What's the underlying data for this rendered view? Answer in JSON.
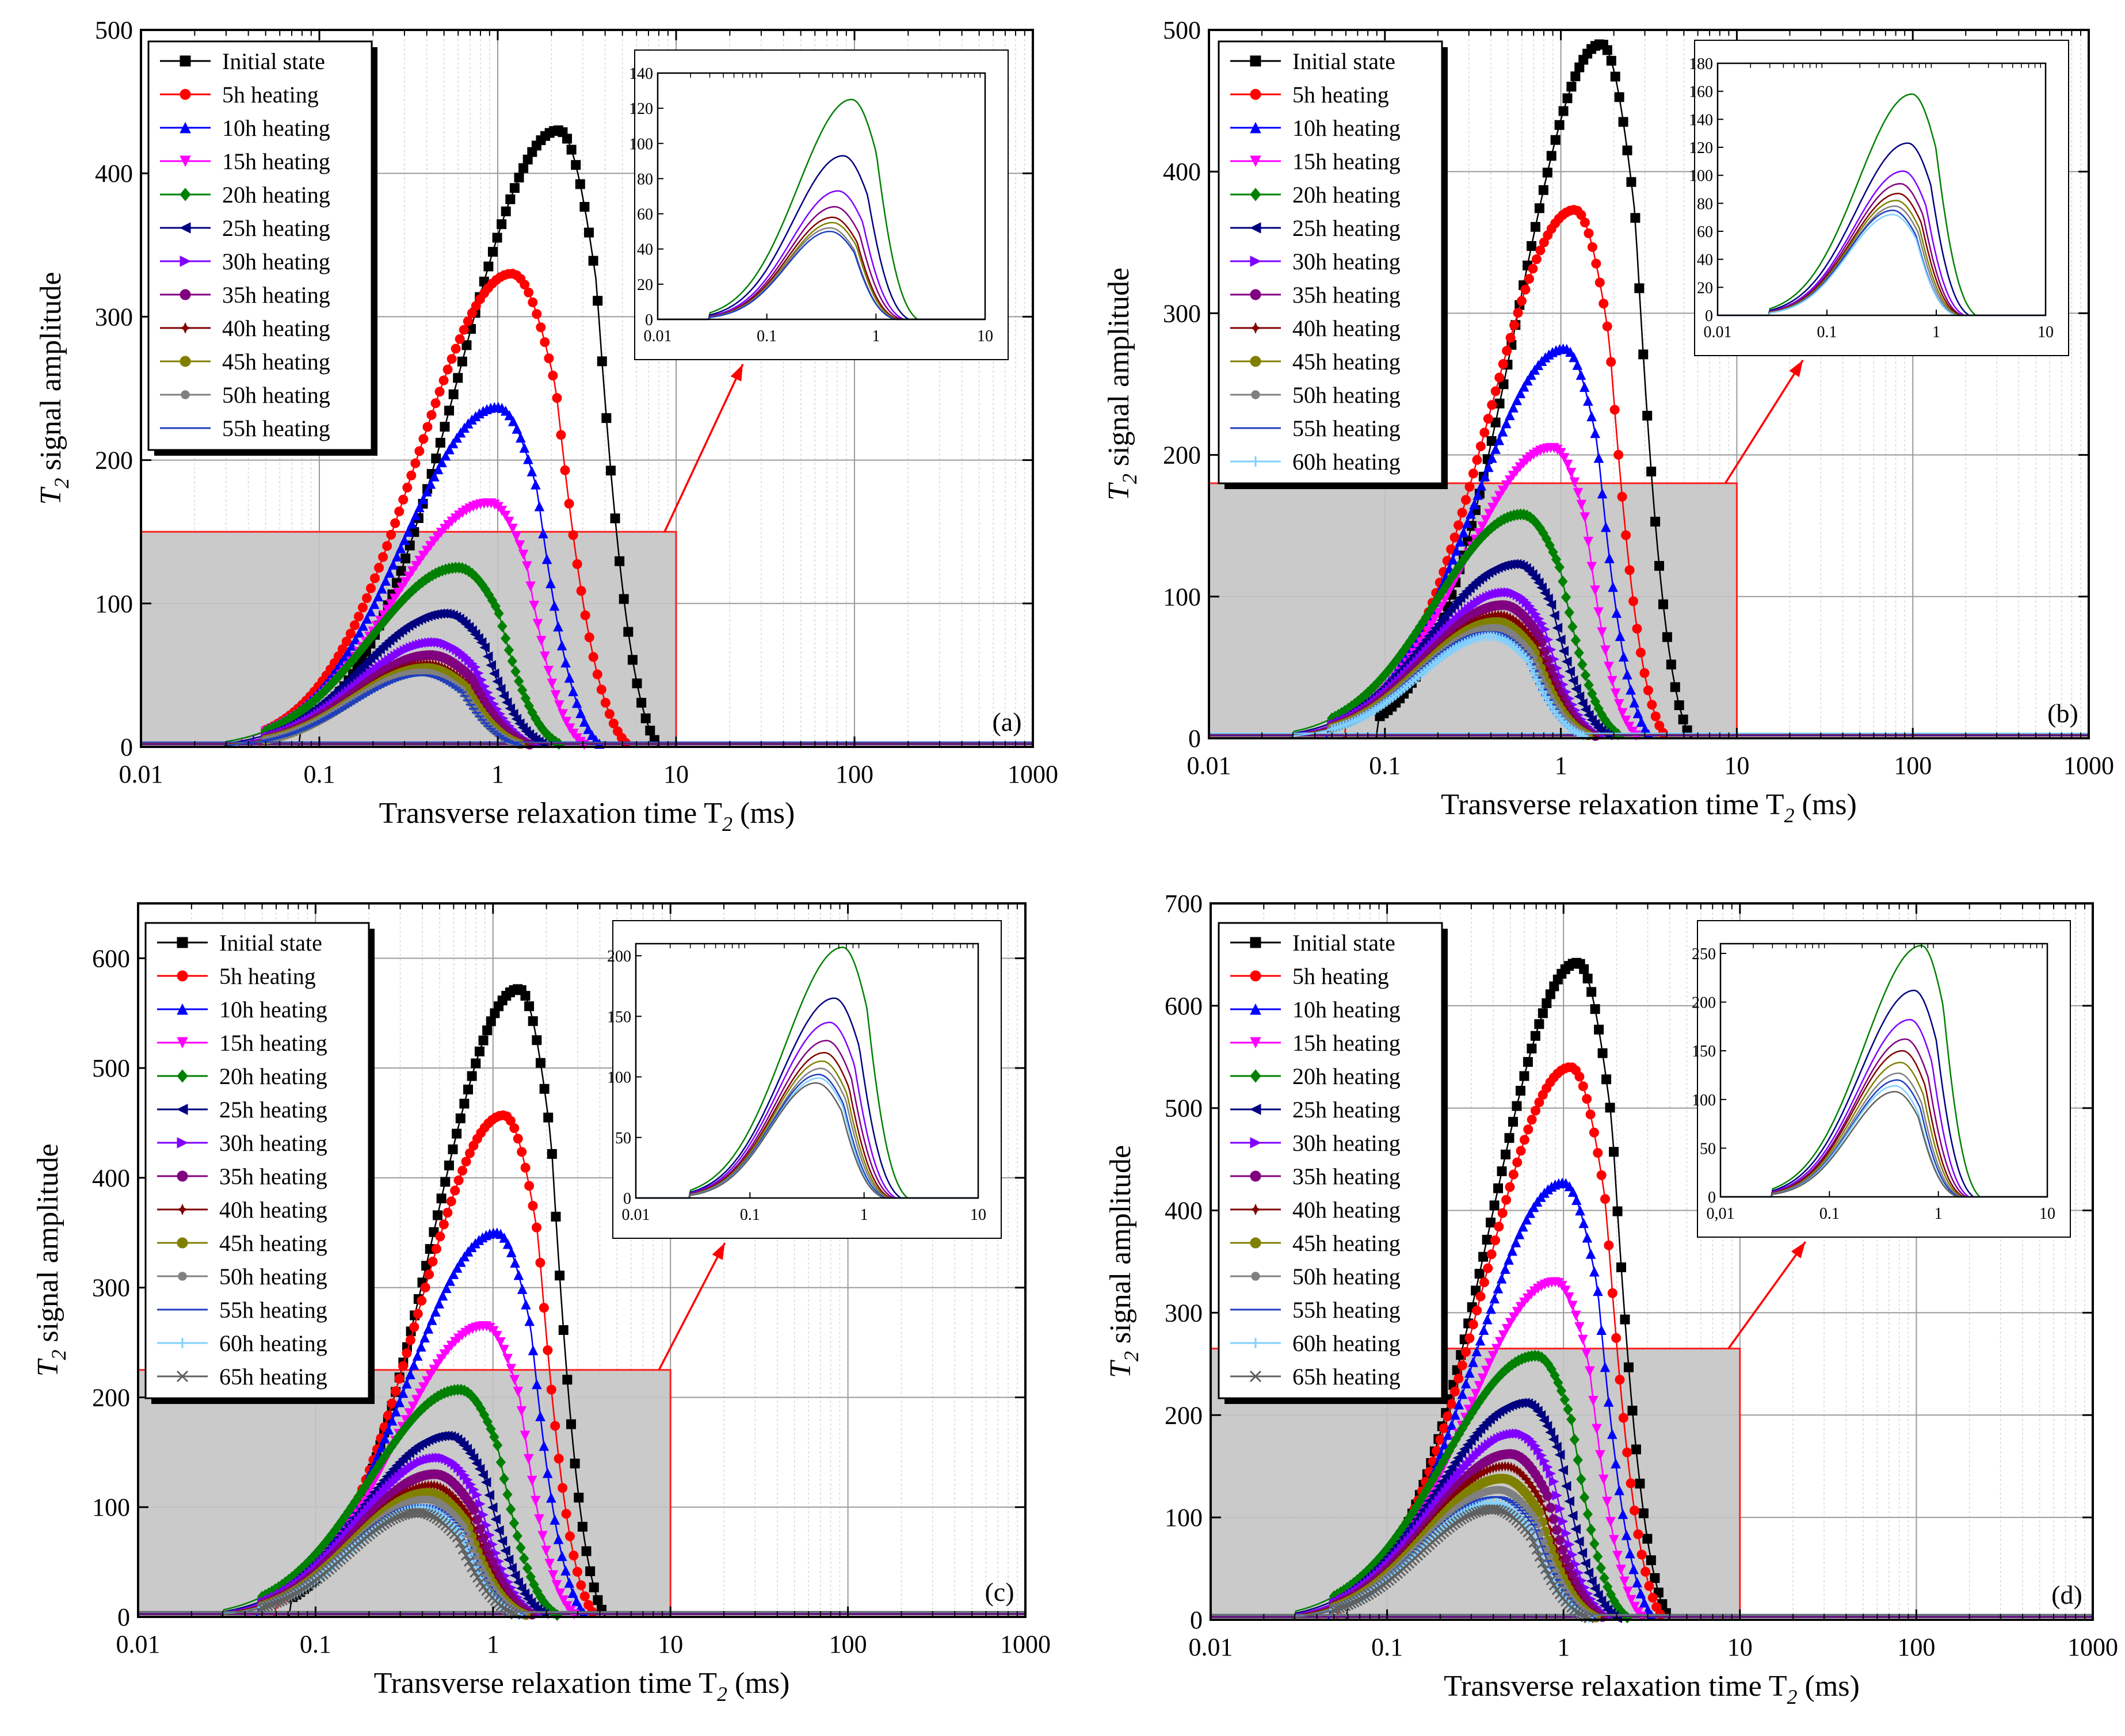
{
  "figure": {
    "description_free": true
  },
  "chart_data": [
    {
      "type": "line",
      "panel_label": "(a)",
      "xscale": "log",
      "xlim": [
        0.01,
        1000
      ],
      "ylim": [
        0,
        500
      ],
      "xticks": [
        "0.01",
        "0.1",
        "1",
        "10",
        "100",
        "1000"
      ],
      "yticks": [
        "0",
        "100",
        "200",
        "300",
        "400",
        "500"
      ],
      "xlabel": "Transverse relaxation time T2 (ms)",
      "xlabel_parts": {
        "main": "Transverse relaxation time T",
        "sub": "2",
        "unit": " (ms)"
      },
      "ylabel": "T2 signal amplitude",
      "ylabel_parts": {
        "sym": "T",
        "sub": "2",
        "rest": " signal amplitude"
      },
      "highlight_region": {
        "x": [
          0.01,
          10
        ],
        "y": [
          0,
          150
        ]
      },
      "inset": {
        "xlim": [
          0.01,
          10
        ],
        "ylim": [
          0,
          140
        ],
        "xticks": [
          "0.01",
          "0.1",
          "1",
          "10"
        ],
        "yticks": [
          "0",
          "20",
          "40",
          "60",
          "80",
          "100",
          "120",
          "140"
        ]
      },
      "series": [
        {
          "name": "Initial state",
          "peak_x": 2.2,
          "peak_y": 430,
          "left": 0.13,
          "right": 8.0,
          "marker": "square",
          "color": "#000000"
        },
        {
          "name": "5h heating",
          "peak_x": 1.2,
          "peak_y": 330,
          "left": 0.08,
          "right": 5.5,
          "marker": "circle",
          "color": "#ff0000"
        },
        {
          "name": "10h heating",
          "peak_x": 1.0,
          "peak_y": 237,
          "left": 0.07,
          "right": 3.9,
          "marker": "triangle-up",
          "color": "#0000ff"
        },
        {
          "name": "15h heating",
          "peak_x": 0.9,
          "peak_y": 170,
          "left": 0.06,
          "right": 3.2,
          "marker": "triangle-down",
          "color": "#ff00ff"
        },
        {
          "name": "20h heating",
          "peak_x": 0.6,
          "peak_y": 125,
          "left": 0.05,
          "right": 2.4,
          "marker": "diamond",
          "color": "#008000"
        },
        {
          "name": "25h heating",
          "peak_x": 0.5,
          "peak_y": 93,
          "left": 0.05,
          "right": 2.0,
          "marker": "triangle-left",
          "color": "#000080"
        },
        {
          "name": "30h heating",
          "peak_x": 0.45,
          "peak_y": 73,
          "left": 0.05,
          "right": 1.8,
          "marker": "triangle-right",
          "color": "#8000ff"
        },
        {
          "name": "35h heating",
          "peak_x": 0.42,
          "peak_y": 64,
          "left": 0.05,
          "right": 1.7,
          "marker": "hexagon",
          "color": "#800080"
        },
        {
          "name": "40h heating",
          "peak_x": 0.4,
          "peak_y": 58,
          "left": 0.05,
          "right": 1.6,
          "marker": "star",
          "color": "#800000"
        },
        {
          "name": "45h heating",
          "peak_x": 0.4,
          "peak_y": 55,
          "left": 0.05,
          "right": 1.55,
          "marker": "pentagon",
          "color": "#808000"
        },
        {
          "name": "50h heating",
          "peak_x": 0.38,
          "peak_y": 52,
          "left": 0.05,
          "right": 1.5,
          "marker": "circle-small",
          "color": "#808080"
        },
        {
          "name": "55h heating",
          "peak_x": 0.38,
          "peak_y": 50,
          "left": 0.05,
          "right": 1.5,
          "marker": "dash",
          "color": "#1f3fbf"
        }
      ]
    },
    {
      "type": "line",
      "panel_label": "(b)",
      "xscale": "log",
      "xlim": [
        0.01,
        1000
      ],
      "ylim": [
        0,
        500
      ],
      "xticks": [
        "0.01",
        "0.1",
        "1",
        "10",
        "100",
        "1000"
      ],
      "yticks": [
        "0",
        "100",
        "200",
        "300",
        "400",
        "500"
      ],
      "xlabel": "Transverse relaxation time T2 (ms)",
      "xlabel_parts": {
        "main": "Transverse relaxation time T",
        "sub": "2",
        "unit": " (ms)"
      },
      "ylabel": "T2 signal amplitude",
      "ylabel_parts": {
        "sym": "T",
        "sub": "2",
        "rest": " signal amplitude"
      },
      "highlight_region": {
        "x": [
          0.01,
          10
        ],
        "y": [
          0,
          180
        ]
      },
      "inset": {
        "xlim": [
          0.01,
          10
        ],
        "ylim": [
          0,
          180
        ],
        "xticks": [
          "0.01",
          "0.1",
          "1",
          "10"
        ],
        "yticks": [
          "0",
          "20",
          "40",
          "60",
          "80",
          "100",
          "120",
          "140",
          "160",
          "180"
        ]
      },
      "series": [
        {
          "name": "Initial state",
          "peak_x": 1.7,
          "peak_y": 490,
          "left": 0.15,
          "right": 5.5,
          "marker": "square",
          "color": "#000000"
        },
        {
          "name": "5h heating",
          "peak_x": 1.2,
          "peak_y": 373,
          "left": 0.1,
          "right": 4.0,
          "marker": "circle",
          "color": "#ff0000"
        },
        {
          "name": "10h heating",
          "peak_x": 1.05,
          "peak_y": 275,
          "left": 0.08,
          "right": 3.3,
          "marker": "triangle-up",
          "color": "#0000ff"
        },
        {
          "name": "15h heating",
          "peak_x": 0.9,
          "peak_y": 205,
          "left": 0.07,
          "right": 2.8,
          "marker": "triangle-down",
          "color": "#ff00ff"
        },
        {
          "name": "20h heating",
          "peak_x": 0.6,
          "peak_y": 158,
          "left": 0.05,
          "right": 2.3,
          "marker": "diamond",
          "color": "#008000"
        },
        {
          "name": "25h heating",
          "peak_x": 0.55,
          "peak_y": 123,
          "left": 0.05,
          "right": 2.0,
          "marker": "triangle-left",
          "color": "#000080"
        },
        {
          "name": "30h heating",
          "peak_x": 0.5,
          "peak_y": 103,
          "left": 0.05,
          "right": 1.8,
          "marker": "triangle-right",
          "color": "#8000ff"
        },
        {
          "name": "35h heating",
          "peak_x": 0.47,
          "peak_y": 94,
          "left": 0.05,
          "right": 1.7,
          "marker": "hexagon",
          "color": "#800080"
        },
        {
          "name": "40h heating",
          "peak_x": 0.45,
          "peak_y": 87,
          "left": 0.05,
          "right": 1.65,
          "marker": "star",
          "color": "#800000"
        },
        {
          "name": "45h heating",
          "peak_x": 0.43,
          "peak_y": 82,
          "left": 0.05,
          "right": 1.6,
          "marker": "pentagon",
          "color": "#808000"
        },
        {
          "name": "50h heating",
          "peak_x": 0.42,
          "peak_y": 78,
          "left": 0.05,
          "right": 1.55,
          "marker": "circle-small",
          "color": "#808080"
        },
        {
          "name": "55h heating",
          "peak_x": 0.4,
          "peak_y": 75,
          "left": 0.05,
          "right": 1.5,
          "marker": "dash",
          "color": "#1f3fbf"
        },
        {
          "name": "60h heating",
          "peak_x": 0.4,
          "peak_y": 72,
          "left": 0.05,
          "right": 1.5,
          "marker": "cross",
          "color": "#80d0ff"
        }
      ]
    },
    {
      "type": "line",
      "panel_label": "(c)",
      "xscale": "log",
      "xlim": [
        0.01,
        1000
      ],
      "ylim": [
        0,
        650
      ],
      "xticks": [
        "0.01",
        "0.1",
        "1",
        "10",
        "100",
        "1000"
      ],
      "yticks": [
        "0",
        "100",
        "200",
        "300",
        "400",
        "500",
        "600"
      ],
      "xlabel": "Transverse relaxation time T2 (ms)",
      "xlabel_parts": {
        "main": "Transverse relaxation time T",
        "sub": "2",
        "unit": " (ms)"
      },
      "ylabel": "T2 signal amplitude",
      "ylabel_parts": {
        "sym": "T",
        "sub": "2",
        "rest": " signal amplitude"
      },
      "highlight_region": {
        "x": [
          0.01,
          10
        ],
        "y": [
          0,
          225
        ]
      },
      "inset": {
        "xlim": [
          0.01,
          10
        ],
        "ylim": [
          0,
          210
        ],
        "xticks": [
          "0.01",
          "0.1",
          "1",
          "10"
        ],
        "yticks": [
          "0",
          "50",
          "100",
          "150",
          "200"
        ]
      },
      "series": [
        {
          "name": "Initial state",
          "peak_x": 1.4,
          "peak_y": 572,
          "left": 0.12,
          "right": 4.3,
          "marker": "square",
          "color": "#000000"
        },
        {
          "name": "5h heating",
          "peak_x": 1.15,
          "peak_y": 457,
          "left": 0.1,
          "right": 3.8,
          "marker": "circle",
          "color": "#ff0000"
        },
        {
          "name": "10h heating",
          "peak_x": 1.05,
          "peak_y": 350,
          "left": 0.08,
          "right": 3.4,
          "marker": "triangle-up",
          "color": "#0000ff"
        },
        {
          "name": "15h heating",
          "peak_x": 0.9,
          "peak_y": 265,
          "left": 0.07,
          "right": 3.0,
          "marker": "triangle-down",
          "color": "#ff00ff"
        },
        {
          "name": "20h heating",
          "peak_x": 0.65,
          "peak_y": 207,
          "left": 0.05,
          "right": 2.4,
          "marker": "diamond",
          "color": "#008000"
        },
        {
          "name": "25h heating",
          "peak_x": 0.55,
          "peak_y": 165,
          "left": 0.05,
          "right": 2.1,
          "marker": "triangle-left",
          "color": "#000080"
        },
        {
          "name": "30h heating",
          "peak_x": 0.5,
          "peak_y": 145,
          "left": 0.05,
          "right": 1.9,
          "marker": "triangle-right",
          "color": "#8000ff"
        },
        {
          "name": "35h heating",
          "peak_x": 0.47,
          "peak_y": 130,
          "left": 0.05,
          "right": 1.8,
          "marker": "hexagon",
          "color": "#800080"
        },
        {
          "name": "40h heating",
          "peak_x": 0.45,
          "peak_y": 120,
          "left": 0.05,
          "right": 1.7,
          "marker": "star",
          "color": "#800000"
        },
        {
          "name": "45h heating",
          "peak_x": 0.43,
          "peak_y": 113,
          "left": 0.05,
          "right": 1.65,
          "marker": "pentagon",
          "color": "#808000"
        },
        {
          "name": "50h heating",
          "peak_x": 0.42,
          "peak_y": 107,
          "left": 0.05,
          "right": 1.6,
          "marker": "circle-small",
          "color": "#808080"
        },
        {
          "name": "55h heating",
          "peak_x": 0.4,
          "peak_y": 102,
          "left": 0.05,
          "right": 1.55,
          "marker": "dash",
          "color": "#1f3fbf"
        },
        {
          "name": "60h heating",
          "peak_x": 0.4,
          "peak_y": 99,
          "left": 0.05,
          "right": 1.5,
          "marker": "cross",
          "color": "#80d0ff"
        },
        {
          "name": "65h heating",
          "peak_x": 0.38,
          "peak_y": 95,
          "left": 0.05,
          "right": 1.5,
          "marker": "x",
          "color": "#606060"
        }
      ]
    },
    {
      "type": "line",
      "panel_label": "(d)",
      "xscale": "log",
      "xlim": [
        0.01,
        1000
      ],
      "ylim": [
        0,
        700
      ],
      "xticks": [
        "0.01",
        "0.1",
        "1",
        "10",
        "100",
        "1000"
      ],
      "yticks": [
        "0",
        "100",
        "200",
        "300",
        "400",
        "500",
        "600",
        "700"
      ],
      "xlabel": "Transverse relaxation time T2 (ms)",
      "xlabel_parts": {
        "main": "Transverse relaxation time T",
        "sub": "2",
        "unit": " (ms)"
      },
      "ylabel": "T2 signal amplitude",
      "ylabel_parts": {
        "sym": "T",
        "sub": "2",
        "rest": " signal amplitude"
      },
      "highlight_region": {
        "x": [
          0.01,
          10
        ],
        "y": [
          0,
          265
        ]
      },
      "inset": {
        "xlim": [
          0.01,
          10
        ],
        "ylim": [
          0,
          260
        ],
        "xticks": [
          "0,01",
          "0.1",
          "1",
          "10"
        ],
        "yticks": [
          "0",
          "50",
          "100",
          "150",
          "200",
          "250"
        ]
      },
      "series": [
        {
          "name": "Initial state",
          "peak_x": 1.2,
          "peak_y": 642,
          "left": 0.1,
          "right": 4.0,
          "marker": "square",
          "color": "#000000"
        },
        {
          "name": "5h heating",
          "peak_x": 1.1,
          "peak_y": 540,
          "left": 0.09,
          "right": 3.7,
          "marker": "circle",
          "color": "#ff0000"
        },
        {
          "name": "10h heating",
          "peak_x": 1.0,
          "peak_y": 427,
          "left": 0.08,
          "right": 3.3,
          "marker": "triangle-up",
          "color": "#0000ff"
        },
        {
          "name": "15h heating",
          "peak_x": 0.9,
          "peak_y": 330,
          "left": 0.07,
          "right": 2.9,
          "marker": "triangle-down",
          "color": "#ff00ff"
        },
        {
          "name": "20h heating",
          "peak_x": 0.7,
          "peak_y": 258,
          "left": 0.05,
          "right": 2.4,
          "marker": "diamond",
          "color": "#008000"
        },
        {
          "name": "25h heating",
          "peak_x": 0.6,
          "peak_y": 212,
          "left": 0.05,
          "right": 2.1,
          "marker": "triangle-left",
          "color": "#000080"
        },
        {
          "name": "30h heating",
          "peak_x": 0.55,
          "peak_y": 182,
          "left": 0.05,
          "right": 1.9,
          "marker": "triangle-right",
          "color": "#8000ff"
        },
        {
          "name": "35h heating",
          "peak_x": 0.5,
          "peak_y": 162,
          "left": 0.05,
          "right": 1.8,
          "marker": "hexagon",
          "color": "#800080"
        },
        {
          "name": "40h heating",
          "peak_x": 0.47,
          "peak_y": 150,
          "left": 0.05,
          "right": 1.7,
          "marker": "star",
          "color": "#800000"
        },
        {
          "name": "45h heating",
          "peak_x": 0.45,
          "peak_y": 138,
          "left": 0.05,
          "right": 1.65,
          "marker": "pentagon",
          "color": "#808000"
        },
        {
          "name": "50h heating",
          "peak_x": 0.43,
          "peak_y": 127,
          "left": 0.05,
          "right": 1.6,
          "marker": "circle-small",
          "color": "#808080"
        },
        {
          "name": "55h heating",
          "peak_x": 0.42,
          "peak_y": 120,
          "left": 0.05,
          "right": 1.55,
          "marker": "dash",
          "color": "#1f3fbf"
        },
        {
          "name": "60h heating",
          "peak_x": 0.4,
          "peak_y": 114,
          "left": 0.05,
          "right": 1.5,
          "marker": "cross",
          "color": "#80d0ff"
        },
        {
          "name": "65h heating",
          "peak_x": 0.4,
          "peak_y": 108,
          "left": 0.05,
          "right": 1.5,
          "marker": "x",
          "color": "#606060"
        }
      ]
    }
  ]
}
